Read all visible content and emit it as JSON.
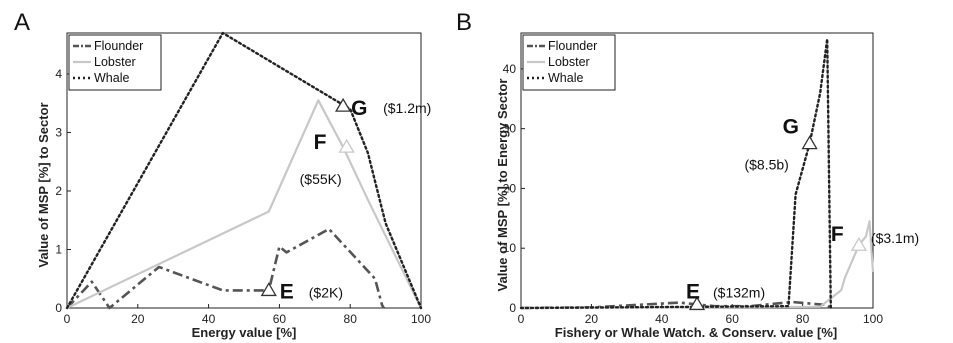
{
  "chart_data": [
    {
      "type": "line",
      "panel_label": "A",
      "xlabel": "Energy value [%]",
      "ylabel": "Value of MSP [%] to Sector",
      "xlim": [
        0,
        100
      ],
      "ylim": [
        0,
        4.7
      ],
      "xticks": [
        "0",
        "20",
        "40",
        "60",
        "80",
        "100"
      ],
      "yticks": [
        "0",
        "1",
        "2",
        "3",
        "4"
      ],
      "legend": {
        "placement": "top-left",
        "entries": [
          "Flounder",
          "Lobster",
          "Whale"
        ]
      },
      "series": [
        {
          "name": "Flounder",
          "style": "dashdot",
          "color": "#555555",
          "x": [
            0,
            7,
            12,
            26,
            44,
            57,
            60,
            62,
            74,
            87,
            89,
            89.5
          ],
          "y": [
            0,
            0.45,
            0,
            0.7,
            0.3,
            0.3,
            1.05,
            0.95,
            1.35,
            0.5,
            0.05,
            0
          ]
        },
        {
          "name": "Lobster",
          "style": "solid",
          "color": "#c8c8c8",
          "x": [
            0,
            57,
            71,
            78,
            85,
            100
          ],
          "y": [
            0,
            1.65,
            3.55,
            2.75,
            1.85,
            0
          ]
        },
        {
          "name": "Whale",
          "style": "dotted",
          "color": "#222222",
          "x": [
            0,
            44,
            80,
            85,
            90,
            100
          ],
          "y": [
            0,
            4.7,
            3.4,
            2.65,
            1.45,
            0
          ]
        }
      ],
      "annotations": [
        {
          "letter": "G",
          "value": "($1.2m)",
          "x": 78,
          "y": 3.45,
          "marker_color": "#333333"
        },
        {
          "letter": "F",
          "value": "($55K)",
          "x": 79,
          "y": 2.75,
          "marker_color": "#c8c8c8"
        },
        {
          "letter": "E",
          "value": "($2K)",
          "x": 57,
          "y": 0.3,
          "marker_color": "#333333"
        }
      ]
    },
    {
      "type": "line",
      "panel_label": "B",
      "xlabel": "Fishery or Whale Watch. & Conserv. value [%]",
      "ylabel": "Value of MSP [%] to Energy Sector",
      "xlim": [
        0,
        100
      ],
      "ylim": [
        0,
        46
      ],
      "xticks": [
        "0",
        "20",
        "40",
        "60",
        "80",
        "100"
      ],
      "yticks": [
        "0",
        "10",
        "20",
        "30",
        "40"
      ],
      "legend": {
        "placement": "top-left",
        "entries": [
          "Flounder",
          "Lobster",
          "Whale"
        ]
      },
      "series": [
        {
          "name": "Flounder",
          "style": "dashdot",
          "color": "#555555",
          "x": [
            0,
            20,
            45,
            55,
            65,
            77,
            87,
            88
          ],
          "y": [
            0,
            0.1,
            0.9,
            0.3,
            0.3,
            1.0,
            0.5,
            0
          ]
        },
        {
          "name": "Lobster",
          "style": "solid",
          "color": "#c8c8c8",
          "x": [
            0,
            85,
            91,
            92,
            96,
            98,
            99,
            100
          ],
          "y": [
            0,
            0.2,
            3,
            5,
            10.5,
            12,
            14.5,
            6
          ]
        },
        {
          "name": "Whale",
          "style": "dotted",
          "color": "#222222",
          "x": [
            0,
            76,
            78,
            82,
            85,
            87,
            88
          ],
          "y": [
            0,
            0.3,
            19,
            27.5,
            36,
            45,
            0
          ]
        }
      ],
      "annotations": [
        {
          "letter": "G",
          "value": "($8.5b)",
          "x": 82,
          "y": 27.5,
          "marker_color": "#333333"
        },
        {
          "letter": "F",
          "value": "($3.1m)",
          "x": 96,
          "y": 10.5,
          "marker_color": "#c8c8c8"
        },
        {
          "letter": "E",
          "value": "($132m)",
          "x": 50,
          "y": 0.6,
          "marker_color": "#333333"
        }
      ]
    }
  ]
}
